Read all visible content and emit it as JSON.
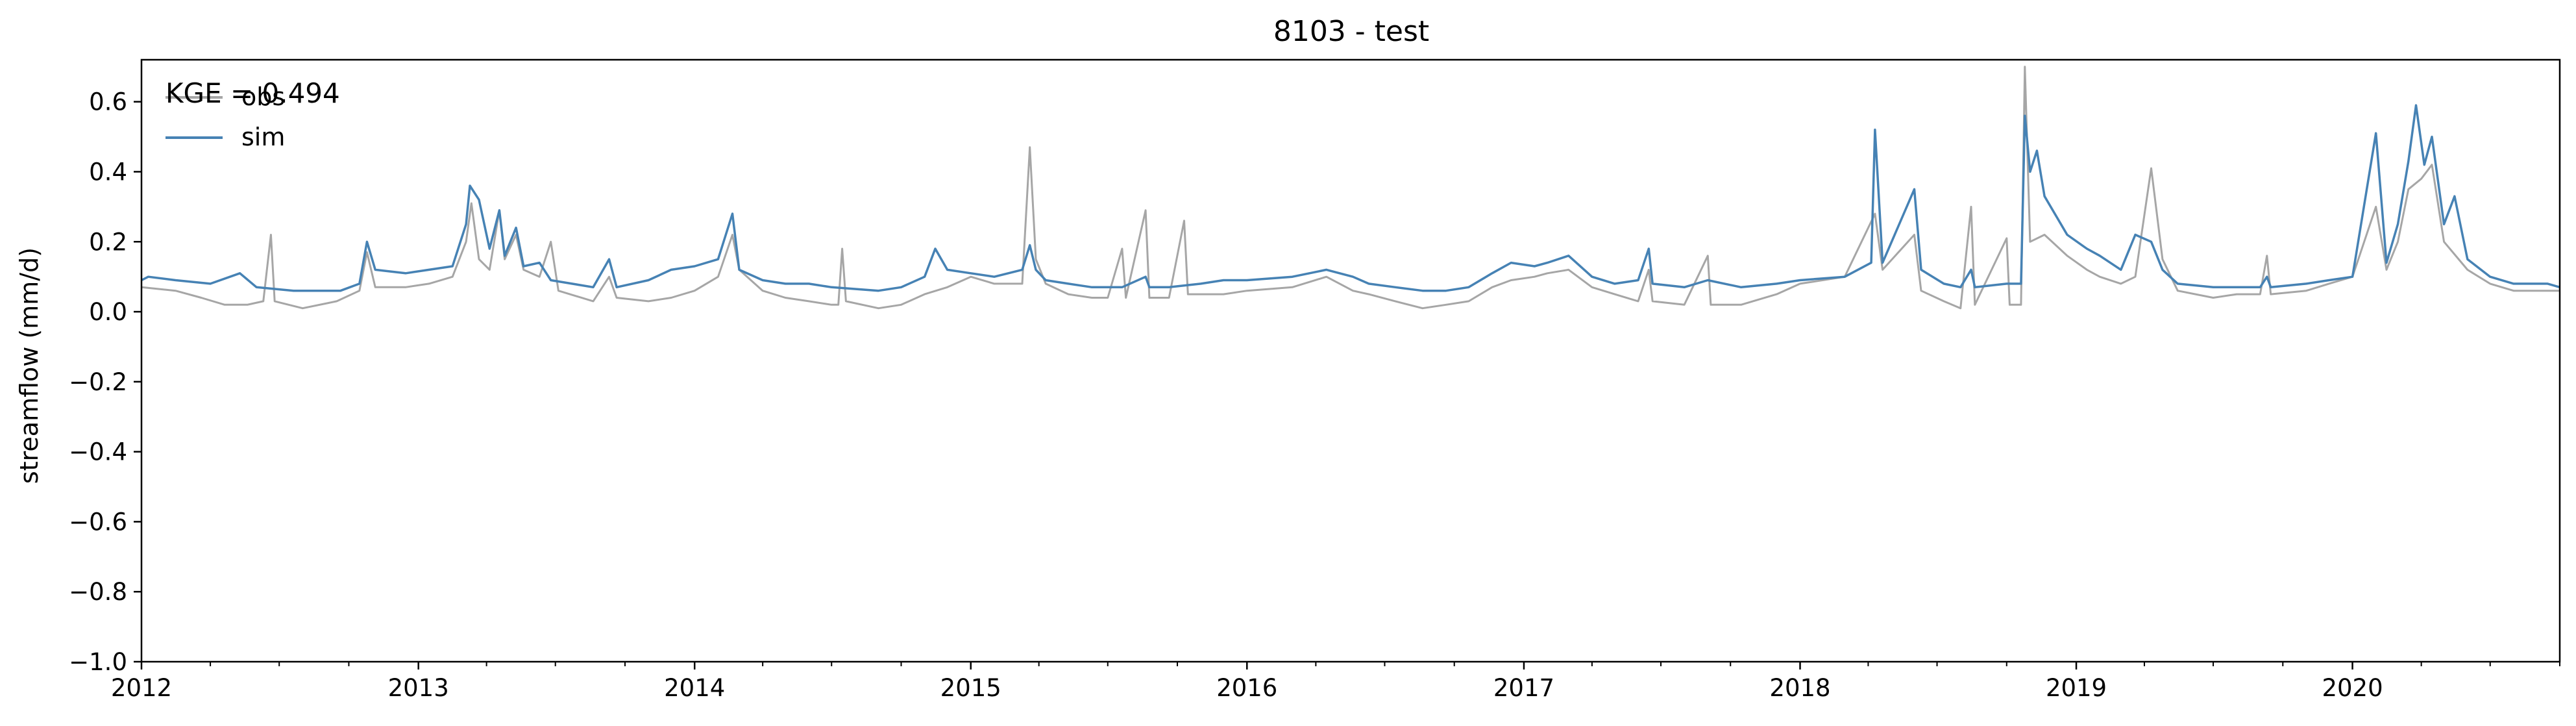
{
  "chart_data": {
    "type": "line",
    "title": "8103 - test",
    "xlabel": "",
    "ylabel": "streamflow (mm/d)",
    "xlim": [
      "2012-01-01",
      "2020-10-01"
    ],
    "ylim": [
      -1.0,
      0.72
    ],
    "x_ticks": [
      "2012",
      "2013",
      "2014",
      "2015",
      "2016",
      "2017",
      "2018",
      "2019",
      "2020"
    ],
    "y_ticks": [
      "0.6",
      "0.4",
      "0.2",
      "0.0",
      "−0.2",
      "−0.4",
      "−0.6",
      "−0.8",
      "−1.0"
    ],
    "grid": false,
    "legend": {
      "position": "top-left",
      "entries": [
        "obs",
        "sim"
      ]
    },
    "annotation": "KGE = 0.494",
    "series": [
      {
        "name": "obs",
        "color": "#a6a6a6",
        "points": [
          [
            "2012-01-01",
            0.07
          ],
          [
            "2012-02-15",
            0.06
          ],
          [
            "2012-03-20",
            0.04
          ],
          [
            "2012-04-20",
            0.02
          ],
          [
            "2012-05-20",
            0.02
          ],
          [
            "2012-06-10",
            0.03
          ],
          [
            "2012-06-20",
            0.22
          ],
          [
            "2012-06-25",
            0.03
          ],
          [
            "2012-08-01",
            0.01
          ],
          [
            "2012-09-15",
            0.03
          ],
          [
            "2012-10-15",
            0.06
          ],
          [
            "2012-10-25",
            0.17
          ],
          [
            "2012-11-05",
            0.07
          ],
          [
            "2012-12-15",
            0.07
          ],
          [
            "2013-01-15",
            0.08
          ],
          [
            "2013-02-15",
            0.1
          ],
          [
            "2013-03-05",
            0.2
          ],
          [
            "2013-03-12",
            0.31
          ],
          [
            "2013-03-22",
            0.15
          ],
          [
            "2013-04-05",
            0.12
          ],
          [
            "2013-04-18",
            0.29
          ],
          [
            "2013-04-25",
            0.15
          ],
          [
            "2013-05-10",
            0.22
          ],
          [
            "2013-05-20",
            0.12
          ],
          [
            "2013-06-10",
            0.1
          ],
          [
            "2013-06-25",
            0.2
          ],
          [
            "2013-07-05",
            0.06
          ],
          [
            "2013-08-20",
            0.03
          ],
          [
            "2013-09-10",
            0.1
          ],
          [
            "2013-09-20",
            0.04
          ],
          [
            "2013-11-01",
            0.03
          ],
          [
            "2013-12-01",
            0.04
          ],
          [
            "2014-01-01",
            0.06
          ],
          [
            "2014-02-01",
            0.1
          ],
          [
            "2014-02-20",
            0.22
          ],
          [
            "2014-03-01",
            0.12
          ],
          [
            "2014-04-01",
            0.06
          ],
          [
            "2014-05-01",
            0.04
          ],
          [
            "2014-06-01",
            0.03
          ],
          [
            "2014-07-01",
            0.02
          ],
          [
            "2014-07-10",
            0.02
          ],
          [
            "2014-07-15",
            0.18
          ],
          [
            "2014-07-20",
            0.03
          ],
          [
            "2014-09-01",
            0.01
          ],
          [
            "2014-10-01",
            0.02
          ],
          [
            "2014-11-01",
            0.05
          ],
          [
            "2014-12-01",
            0.07
          ],
          [
            "2015-01-01",
            0.1
          ],
          [
            "2015-02-01",
            0.08
          ],
          [
            "2015-03-10",
            0.08
          ],
          [
            "2015-03-20",
            0.47
          ],
          [
            "2015-03-28",
            0.15
          ],
          [
            "2015-04-10",
            0.08
          ],
          [
            "2015-05-10",
            0.05
          ],
          [
            "2015-06-10",
            0.04
          ],
          [
            "2015-07-01",
            0.04
          ],
          [
            "2015-07-20",
            0.18
          ],
          [
            "2015-07-25",
            0.04
          ],
          [
            "2015-08-20",
            0.29
          ],
          [
            "2015-08-25",
            0.04
          ],
          [
            "2015-09-20",
            0.04
          ],
          [
            "2015-10-10",
            0.26
          ],
          [
            "2015-10-15",
            0.05
          ],
          [
            "2015-12-01",
            0.05
          ],
          [
            "2016-01-01",
            0.06
          ],
          [
            "2016-03-01",
            0.07
          ],
          [
            "2016-04-15",
            0.1
          ],
          [
            "2016-05-20",
            0.06
          ],
          [
            "2016-06-10",
            0.05
          ],
          [
            "2016-07-15",
            0.03
          ],
          [
            "2016-08-20",
            0.01
          ],
          [
            "2016-09-20",
            0.02
          ],
          [
            "2016-10-20",
            0.03
          ],
          [
            "2016-11-20",
            0.07
          ],
          [
            "2016-12-15",
            0.09
          ],
          [
            "2017-01-15",
            0.1
          ],
          [
            "2017-02-01",
            0.11
          ],
          [
            "2017-03-01",
            0.12
          ],
          [
            "2017-04-01",
            0.07
          ],
          [
            "2017-05-01",
            0.05
          ],
          [
            "2017-06-01",
            0.03
          ],
          [
            "2017-06-15",
            0.12
          ],
          [
            "2017-06-20",
            0.03
          ],
          [
            "2017-08-01",
            0.02
          ],
          [
            "2017-09-01",
            0.16
          ],
          [
            "2017-09-05",
            0.02
          ],
          [
            "2017-10-15",
            0.02
          ],
          [
            "2017-12-01",
            0.05
          ],
          [
            "2018-01-01",
            0.08
          ],
          [
            "2018-03-01",
            0.1
          ],
          [
            "2018-04-10",
            0.28
          ],
          [
            "2018-04-20",
            0.12
          ],
          [
            "2018-06-01",
            0.22
          ],
          [
            "2018-06-10",
            0.06
          ],
          [
            "2018-07-10",
            0.03
          ],
          [
            "2018-08-01",
            0.01
          ],
          [
            "2018-08-15",
            0.3
          ],
          [
            "2018-08-20",
            0.02
          ],
          [
            "2018-10-01",
            0.21
          ],
          [
            "2018-10-05",
            0.02
          ],
          [
            "2018-10-20",
            0.02
          ],
          [
            "2018-10-25",
            0.7
          ],
          [
            "2018-11-01",
            0.2
          ],
          [
            "2018-11-20",
            0.22
          ],
          [
            "2018-12-20",
            0.16
          ],
          [
            "2019-01-15",
            0.12
          ],
          [
            "2019-02-01",
            0.1
          ],
          [
            "2019-03-01",
            0.08
          ],
          [
            "2019-03-20",
            0.1
          ],
          [
            "2019-04-10",
            0.41
          ],
          [
            "2019-04-25",
            0.15
          ],
          [
            "2019-05-15",
            0.06
          ],
          [
            "2019-07-01",
            0.04
          ],
          [
            "2019-08-01",
            0.05
          ],
          [
            "2019-09-01",
            0.05
          ],
          [
            "2019-09-10",
            0.16
          ],
          [
            "2019-09-15",
            0.05
          ],
          [
            "2019-11-01",
            0.06
          ],
          [
            "2019-12-01",
            0.08
          ],
          [
            "2020-01-01",
            0.1
          ],
          [
            "2020-02-01",
            0.3
          ],
          [
            "2020-02-15",
            0.12
          ],
          [
            "2020-03-01",
            0.2
          ],
          [
            "2020-03-15",
            0.35
          ],
          [
            "2020-04-01",
            0.38
          ],
          [
            "2020-04-15",
            0.42
          ],
          [
            "2020-05-01",
            0.2
          ],
          [
            "2020-06-01",
            0.12
          ],
          [
            "2020-07-01",
            0.08
          ],
          [
            "2020-08-01",
            0.06
          ],
          [
            "2020-09-15",
            0.06
          ],
          [
            "2020-10-01",
            0.06
          ]
        ]
      },
      {
        "name": "sim",
        "color": "#4682b4",
        "points": [
          [
            "2012-01-01",
            0.09
          ],
          [
            "2012-01-10",
            0.1
          ],
          [
            "2012-02-15",
            0.09
          ],
          [
            "2012-04-01",
            0.08
          ],
          [
            "2012-05-10",
            0.11
          ],
          [
            "2012-06-01",
            0.07
          ],
          [
            "2012-07-20",
            0.06
          ],
          [
            "2012-09-20",
            0.06
          ],
          [
            "2012-10-15",
            0.08
          ],
          [
            "2012-10-25",
            0.2
          ],
          [
            "2012-11-05",
            0.12
          ],
          [
            "2012-12-15",
            0.11
          ],
          [
            "2013-01-15",
            0.12
          ],
          [
            "2013-02-15",
            0.13
          ],
          [
            "2013-03-05",
            0.25
          ],
          [
            "2013-03-10",
            0.36
          ],
          [
            "2013-03-22",
            0.32
          ],
          [
            "2013-04-05",
            0.18
          ],
          [
            "2013-04-18",
            0.29
          ],
          [
            "2013-04-25",
            0.16
          ],
          [
            "2013-05-10",
            0.24
          ],
          [
            "2013-05-20",
            0.13
          ],
          [
            "2013-06-10",
            0.14
          ],
          [
            "2013-06-25",
            0.09
          ],
          [
            "2013-08-20",
            0.07
          ],
          [
            "2013-09-10",
            0.15
          ],
          [
            "2013-09-20",
            0.07
          ],
          [
            "2013-11-01",
            0.09
          ],
          [
            "2013-12-01",
            0.12
          ],
          [
            "2014-01-01",
            0.13
          ],
          [
            "2014-02-01",
            0.15
          ],
          [
            "2014-02-20",
            0.28
          ],
          [
            "2014-03-01",
            0.12
          ],
          [
            "2014-04-01",
            0.09
          ],
          [
            "2014-05-01",
            0.08
          ],
          [
            "2014-06-01",
            0.08
          ],
          [
            "2014-07-01",
            0.07
          ],
          [
            "2014-09-01",
            0.06
          ],
          [
            "2014-10-01",
            0.07
          ],
          [
            "2014-11-01",
            0.1
          ],
          [
            "2014-11-15",
            0.18
          ],
          [
            "2014-12-01",
            0.12
          ],
          [
            "2015-01-01",
            0.11
          ],
          [
            "2015-02-01",
            0.1
          ],
          [
            "2015-03-10",
            0.12
          ],
          [
            "2015-03-20",
            0.19
          ],
          [
            "2015-03-28",
            0.12
          ],
          [
            "2015-04-10",
            0.09
          ],
          [
            "2015-05-10",
            0.08
          ],
          [
            "2015-06-10",
            0.07
          ],
          [
            "2015-07-20",
            0.07
          ],
          [
            "2015-08-20",
            0.1
          ],
          [
            "2015-08-25",
            0.07
          ],
          [
            "2015-09-20",
            0.07
          ],
          [
            "2015-11-01",
            0.08
          ],
          [
            "2015-12-01",
            0.09
          ],
          [
            "2016-01-01",
            0.09
          ],
          [
            "2016-03-01",
            0.1
          ],
          [
            "2016-04-15",
            0.12
          ],
          [
            "2016-05-20",
            0.1
          ],
          [
            "2016-06-10",
            0.08
          ],
          [
            "2016-07-15",
            0.07
          ],
          [
            "2016-08-20",
            0.06
          ],
          [
            "2016-09-20",
            0.06
          ],
          [
            "2016-10-20",
            0.07
          ],
          [
            "2016-11-20",
            0.11
          ],
          [
            "2016-12-15",
            0.14
          ],
          [
            "2017-01-15",
            0.13
          ],
          [
            "2017-02-01",
            0.14
          ],
          [
            "2017-03-01",
            0.16
          ],
          [
            "2017-04-01",
            0.1
          ],
          [
            "2017-05-01",
            0.08
          ],
          [
            "2017-06-01",
            0.09
          ],
          [
            "2017-06-15",
            0.18
          ],
          [
            "2017-06-20",
            0.08
          ],
          [
            "2017-08-01",
            0.07
          ],
          [
            "2017-09-01",
            0.09
          ],
          [
            "2017-10-15",
            0.07
          ],
          [
            "2017-12-01",
            0.08
          ],
          [
            "2018-01-01",
            0.09
          ],
          [
            "2018-03-01",
            0.1
          ],
          [
            "2018-04-05",
            0.14
          ],
          [
            "2018-04-10",
            0.52
          ],
          [
            "2018-04-20",
            0.14
          ],
          [
            "2018-06-01",
            0.35
          ],
          [
            "2018-06-10",
            0.12
          ],
          [
            "2018-07-10",
            0.08
          ],
          [
            "2018-08-01",
            0.07
          ],
          [
            "2018-08-15",
            0.12
          ],
          [
            "2018-08-20",
            0.07
          ],
          [
            "2018-10-01",
            0.08
          ],
          [
            "2018-10-20",
            0.08
          ],
          [
            "2018-10-25",
            0.56
          ],
          [
            "2018-11-01",
            0.4
          ],
          [
            "2018-11-10",
            0.46
          ],
          [
            "2018-11-20",
            0.33
          ],
          [
            "2018-12-20",
            0.22
          ],
          [
            "2019-01-15",
            0.18
          ],
          [
            "2019-02-01",
            0.16
          ],
          [
            "2019-03-01",
            0.12
          ],
          [
            "2019-03-20",
            0.22
          ],
          [
            "2019-04-10",
            0.2
          ],
          [
            "2019-04-25",
            0.12
          ],
          [
            "2019-05-15",
            0.08
          ],
          [
            "2019-07-01",
            0.07
          ],
          [
            "2019-08-01",
            0.07
          ],
          [
            "2019-09-01",
            0.07
          ],
          [
            "2019-09-10",
            0.1
          ],
          [
            "2019-09-15",
            0.07
          ],
          [
            "2019-11-01",
            0.08
          ],
          [
            "2019-12-01",
            0.09
          ],
          [
            "2020-01-01",
            0.1
          ],
          [
            "2020-02-01",
            0.51
          ],
          [
            "2020-02-15",
            0.14
          ],
          [
            "2020-03-01",
            0.25
          ],
          [
            "2020-03-15",
            0.43
          ],
          [
            "2020-03-25",
            0.59
          ],
          [
            "2020-04-05",
            0.42
          ],
          [
            "2020-04-15",
            0.5
          ],
          [
            "2020-05-01",
            0.25
          ],
          [
            "2020-05-15",
            0.33
          ],
          [
            "2020-06-01",
            0.15
          ],
          [
            "2020-07-01",
            0.1
          ],
          [
            "2020-08-01",
            0.08
          ],
          [
            "2020-09-15",
            0.08
          ],
          [
            "2020-10-01",
            0.07
          ]
        ]
      }
    ]
  }
}
